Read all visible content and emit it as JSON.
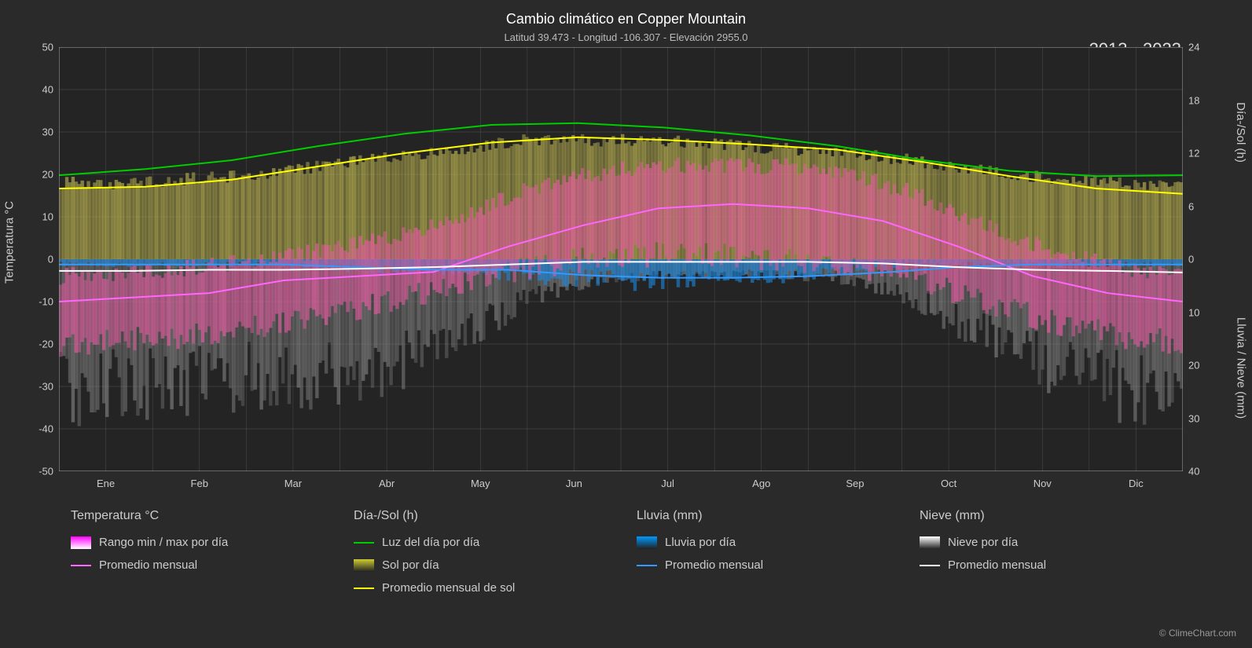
{
  "title": "Cambio climático en Copper Mountain",
  "subtitle": "Latitud 39.473 - Longitud -106.307 - Elevación 2955.0",
  "year_range": "2013 - 2023",
  "logo_text": "ClimeChart.com",
  "copyright": "© ClimeChart.com",
  "axes": {
    "y_left_label": "Temperatura °C",
    "y_right_top_label": "Día-/Sol (h)",
    "y_right_bottom_label": "Lluvia / Nieve (mm)",
    "y_left_ticks": [
      50,
      40,
      30,
      20,
      10,
      0,
      -10,
      -20,
      -30,
      -40,
      -50
    ],
    "y_right_top_ticks": [
      24,
      18,
      12,
      6,
      0
    ],
    "y_right_bottom_ticks": [
      10,
      20,
      30,
      40
    ],
    "x_ticks": [
      "Ene",
      "Feb",
      "Mar",
      "Abr",
      "May",
      "Jun",
      "Jul",
      "Ago",
      "Sep",
      "Oct",
      "Nov",
      "Dic"
    ]
  },
  "chart": {
    "type": "climate_overlay",
    "plot_bg": "#242424",
    "grid_color": "#888888",
    "grid_width": 0.5,
    "temp_range_c": [
      -50,
      50
    ],
    "daylight": {
      "color": "#00cc00",
      "values": [
        9.5,
        10.2,
        11.2,
        12.8,
        14.2,
        15.2,
        15.4,
        14.9,
        14.0,
        12.8,
        11.2,
        10.0,
        9.4,
        9.5
      ]
    },
    "sun_avg": {
      "color": "#ffff00",
      "values": [
        8.0,
        8.2,
        9.0,
        10.5,
        12.0,
        13.2,
        13.8,
        13.5,
        13.0,
        12.4,
        11.0,
        9.4,
        8.0,
        7.4
      ]
    },
    "temp_avg": {
      "color": "#ff66ff",
      "values": [
        -10,
        -9,
        -8,
        -5,
        -4,
        -3,
        3,
        8,
        12,
        13,
        12,
        9,
        3,
        -4,
        -8,
        -10
      ]
    },
    "rain_avg": {
      "color": "#3399ff",
      "values_mm": [
        1,
        1,
        1,
        1,
        1.5,
        2,
        2,
        3,
        3.5,
        3.5,
        3.2,
        2.5,
        1.5,
        1,
        1,
        1
      ]
    },
    "snow_avg": {
      "color": "#ffffff",
      "values_mm": [
        2.2,
        2.2,
        2.0,
        2.0,
        1.8,
        1.5,
        1.0,
        0.5,
        0.5,
        0.5,
        0.5,
        0.8,
        1.5,
        2.0,
        2.2,
        2.5
      ]
    },
    "colors": {
      "temp_range_fill": "#e55aa0",
      "sun_fill": "#b8b050",
      "rain_fill": "#1a88e0",
      "snow_fill": "#808080"
    },
    "daily_bands": {
      "temp_max_c": [
        -4,
        -3,
        -2,
        0,
        2,
        5,
        10,
        16,
        20,
        22,
        22,
        22,
        20,
        15,
        8,
        2,
        -2,
        -4
      ],
      "temp_min_c": [
        -20,
        -19,
        -18,
        -16,
        -13,
        -10,
        -6,
        -2,
        0,
        1,
        1,
        0,
        -2,
        -5,
        -10,
        -15,
        -18,
        -20
      ],
      "sun_max": [
        18,
        18,
        19,
        20,
        22,
        24,
        26,
        28,
        28,
        28,
        27,
        26,
        25,
        23,
        21,
        19,
        18,
        17
      ],
      "sun_min": [
        0,
        0,
        0,
        0,
        0,
        0,
        0,
        0,
        0,
        0,
        0,
        0,
        0,
        0,
        0,
        0,
        0,
        0
      ],
      "rain_mm": [
        1,
        1,
        1,
        1,
        1.5,
        2,
        2,
        3,
        4,
        4,
        3.5,
        3,
        2,
        1,
        1,
        1,
        1,
        1
      ],
      "snow_mm": [
        25,
        24,
        23,
        22,
        22,
        20,
        15,
        8,
        4,
        3,
        3,
        3,
        4,
        8,
        14,
        20,
        24,
        26
      ]
    }
  },
  "legend": {
    "groups": [
      {
        "title": "Temperatura °C",
        "items": [
          {
            "type": "swatch",
            "colors": [
              "#ff00ff",
              "#ffffff"
            ],
            "label": "Rango min / max por día"
          },
          {
            "type": "line",
            "color": "#ff66ff",
            "label": "Promedio mensual"
          }
        ]
      },
      {
        "title": "Día-/Sol (h)",
        "items": [
          {
            "type": "line",
            "color": "#00cc00",
            "label": "Luz del día por día"
          },
          {
            "type": "swatch",
            "colors": [
              "#cccc33",
              "#222222"
            ],
            "label": "Sol por día"
          },
          {
            "type": "line",
            "color": "#ffff00",
            "label": "Promedio mensual de sol"
          }
        ]
      },
      {
        "title": "Lluvia (mm)",
        "items": [
          {
            "type": "swatch",
            "colors": [
              "#0099ff",
              "#222222"
            ],
            "label": "Lluvia por día"
          },
          {
            "type": "line",
            "color": "#3399ff",
            "label": "Promedio mensual"
          }
        ]
      },
      {
        "title": "Nieve (mm)",
        "items": [
          {
            "type": "swatch",
            "colors": [
              "#ffffff",
              "#222222"
            ],
            "label": "Nieve por día"
          },
          {
            "type": "line",
            "color": "#ffffff",
            "label": "Promedio mensual"
          }
        ]
      }
    ]
  }
}
